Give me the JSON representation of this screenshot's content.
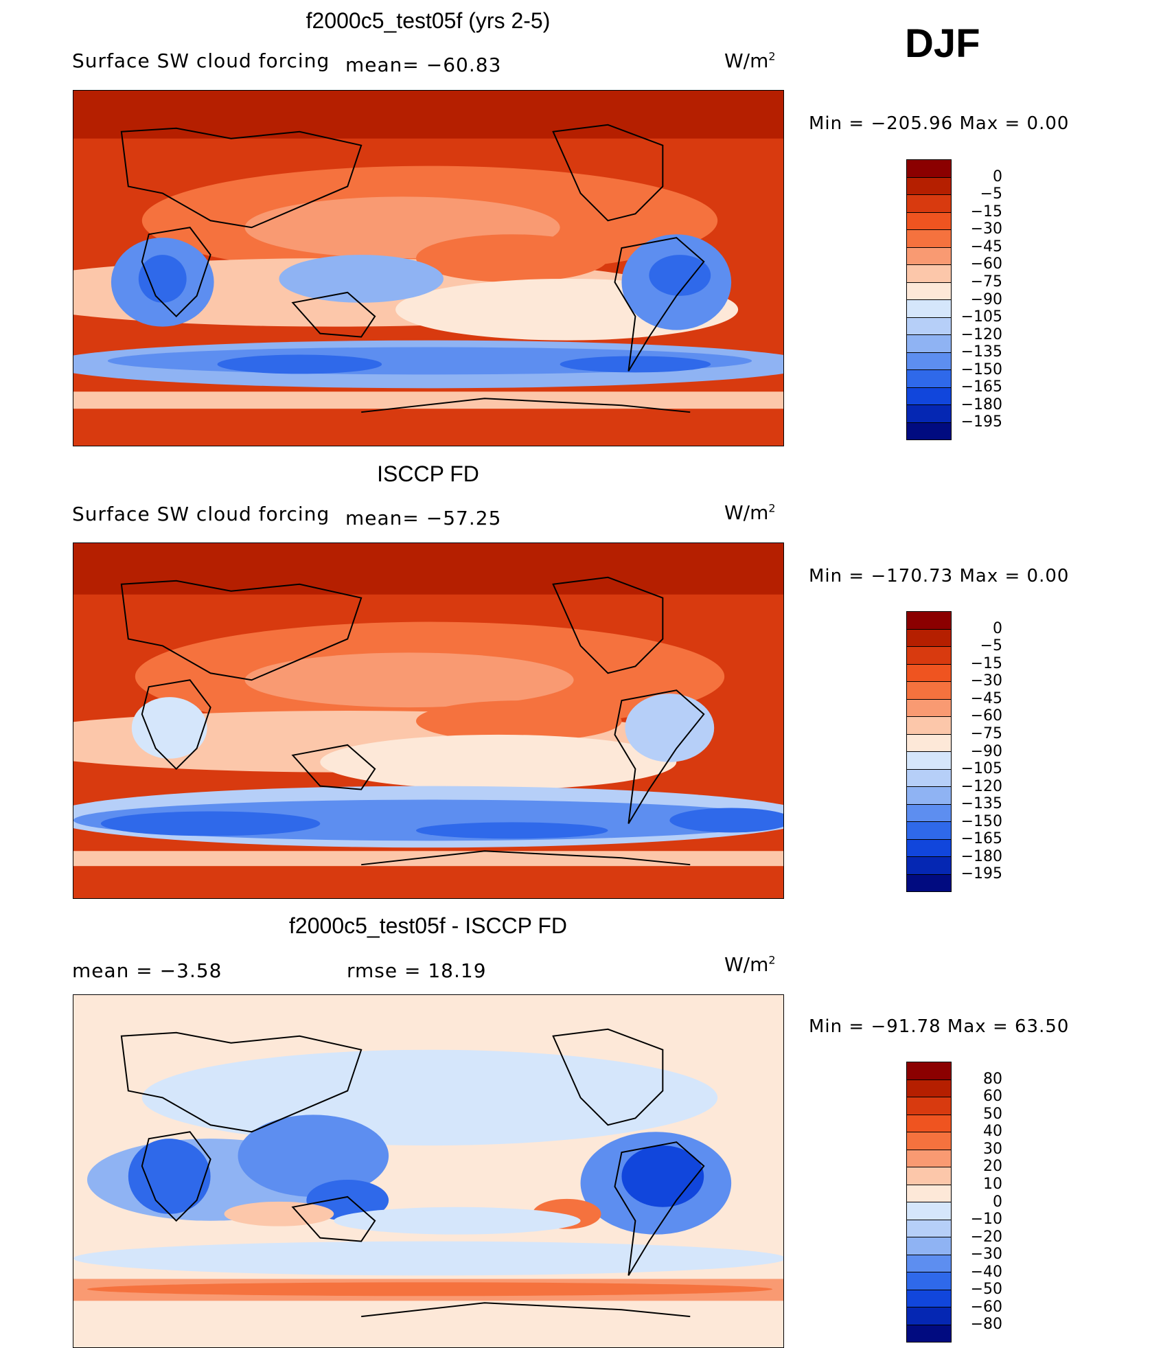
{
  "season": "DJF",
  "panels": [
    {
      "title": "f2000c5_test05f (yrs 2-5)",
      "left_label": "Surface SW cloud forcing",
      "stat_label": "mean= −60.83",
      "unit_base": "W/m",
      "unit_sup": "2",
      "minmax": "Min = −205.96 Max =   0.00",
      "colorbar": {
        "labels": [
          "0",
          "−5",
          "−15",
          "−30",
          "−45",
          "−60",
          "−75",
          "−90",
          "−105",
          "−120",
          "−135",
          "−150",
          "−165",
          "−180",
          "−195"
        ],
        "colors": [
          "#8b0000",
          "#b51f00",
          "#d83a0f",
          "#ef5420",
          "#f5723e",
          "#f99a72",
          "#fcc7aa",
          "#fde8d8",
          "#d5e6fb",
          "#b6cff8",
          "#8fb3f3",
          "#5d8ef0",
          "#2f69ea",
          "#1146dc",
          "#0527b3",
          "#010b80"
        ]
      },
      "chart_data": {
        "type": "heatmap",
        "title": "f2000c5_test05f (yrs 2-5)",
        "variable": "Surface SW cloud forcing",
        "units": "W/m2",
        "mean": -60.83,
        "min": -205.96,
        "max": 0.0,
        "contour_levels": [
          0,
          -5,
          -15,
          -30,
          -45,
          -60,
          -75,
          -90,
          -105,
          -120,
          -135,
          -150,
          -165,
          -180,
          -195
        ]
      }
    },
    {
      "title": "ISCCP FD",
      "left_label": "Surface SW cloud forcing",
      "stat_label": "mean= −57.25",
      "unit_base": "W/m",
      "unit_sup": "2",
      "minmax": "Min = −170.73 Max =   0.00",
      "colorbar": {
        "labels": [
          "0",
          "−5",
          "−15",
          "−30",
          "−45",
          "−60",
          "−75",
          "−90",
          "−105",
          "−120",
          "−135",
          "−150",
          "−165",
          "−180",
          "−195"
        ],
        "colors": [
          "#8b0000",
          "#b51f00",
          "#d83a0f",
          "#ef5420",
          "#f5723e",
          "#f99a72",
          "#fcc7aa",
          "#fde8d8",
          "#d5e6fb",
          "#b6cff8",
          "#8fb3f3",
          "#5d8ef0",
          "#2f69ea",
          "#1146dc",
          "#0527b3",
          "#010b80"
        ]
      },
      "chart_data": {
        "type": "heatmap",
        "title": "ISCCP FD",
        "variable": "Surface SW cloud forcing",
        "units": "W/m2",
        "mean": -57.25,
        "min": -170.73,
        "max": 0.0,
        "contour_levels": [
          0,
          -5,
          -15,
          -30,
          -45,
          -60,
          -75,
          -90,
          -105,
          -120,
          -135,
          -150,
          -165,
          -180,
          -195
        ]
      }
    },
    {
      "title": "f2000c5_test05f - ISCCP FD",
      "left_label": "mean =   −3.58",
      "stat_label": "rmse =   18.19",
      "unit_base": "W/m",
      "unit_sup": "2",
      "minmax": "Min = −91.78 Max =  63.50",
      "colorbar": {
        "labels": [
          "80",
          "60",
          "50",
          "40",
          "30",
          "20",
          "10",
          "0",
          "−10",
          "−20",
          "−30",
          "−40",
          "−50",
          "−60",
          "−80"
        ],
        "colors": [
          "#8b0000",
          "#b51f00",
          "#d83a0f",
          "#ef5420",
          "#f5723e",
          "#f99a72",
          "#fcc7aa",
          "#fde8d8",
          "#d5e6fb",
          "#b6cff8",
          "#8fb3f3",
          "#5d8ef0",
          "#2f69ea",
          "#1146dc",
          "#0527b3",
          "#010b80"
        ]
      },
      "chart_data": {
        "type": "heatmap",
        "title": "f2000c5_test05f - ISCCP FD",
        "units": "W/m2",
        "mean": -3.58,
        "rmse": 18.19,
        "min": -91.78,
        "max": 63.5,
        "contour_levels": [
          80,
          60,
          50,
          40,
          30,
          20,
          10,
          0,
          -10,
          -20,
          -30,
          -40,
          -50,
          -60,
          -80
        ]
      }
    }
  ]
}
